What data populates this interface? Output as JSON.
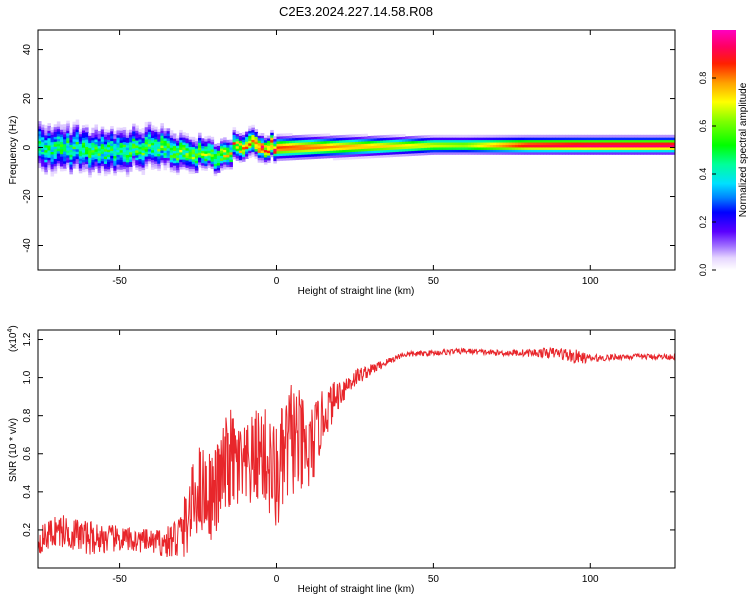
{
  "title": "C2E3.2024.227.14.58.R08",
  "chart_data": [
    {
      "type": "heatmap",
      "name": "spectrogram",
      "xlabel": "Height of straight line (km)",
      "ylabel": "Frequency (Hz)",
      "xlim": [
        -76,
        127
      ],
      "ylim": [
        -50,
        48
      ],
      "xticks": [
        -50,
        0,
        50,
        100
      ],
      "yticks": [
        -40,
        -20,
        0,
        20,
        40
      ],
      "colorbar": {
        "label": "Normalized spectral amplitude",
        "range": [
          0,
          1
        ],
        "ticks": [
          0.0,
          0.2,
          0.4,
          0.6,
          0.8
        ]
      },
      "band": {
        "center_freq_hz": [
          [
            -76,
            1
          ],
          [
            -60,
            -1
          ],
          [
            -40,
            0
          ],
          [
            -20,
            -3
          ],
          [
            -10,
            1
          ],
          [
            0,
            0
          ],
          [
            50,
            1
          ],
          [
            127,
            1
          ]
        ],
        "half_width_hz": [
          [
            -76,
            8
          ],
          [
            -40,
            7
          ],
          [
            -20,
            5
          ],
          [
            0,
            4
          ],
          [
            50,
            3
          ],
          [
            127,
            3
          ]
        ],
        "peak_amplitude": [
          [
            -76,
            0.45
          ],
          [
            -40,
            0.5
          ],
          [
            -20,
            0.6
          ],
          [
            0,
            0.85
          ],
          [
            30,
            0.75
          ],
          [
            60,
            0.65
          ],
          [
            80,
            0.9
          ],
          [
            100,
            0.95
          ],
          [
            127,
            0.95
          ]
        ]
      }
    },
    {
      "type": "line",
      "name": "snr",
      "xlabel": "Height of straight line (km)",
      "ylabel": "SNR (10 * v/v)",
      "scale_label": "(x10",
      "scale_exp": "4",
      "scale_close": ")",
      "xlim": [
        -76,
        127
      ],
      "ylim": [
        0,
        1.25
      ],
      "xticks": [
        -50,
        0,
        50,
        100
      ],
      "yticks": [
        0.2,
        0.4,
        0.6,
        0.8,
        1.0,
        1.2
      ],
      "series": [
        {
          "name": "SNR",
          "color": "#e8262b",
          "x": [
            -76,
            -70,
            -60,
            -50,
            -40,
            -35,
            -30,
            -25,
            -20,
            -15,
            -10,
            -5,
            0,
            5,
            10,
            15,
            20,
            25,
            30,
            35,
            40,
            50,
            60,
            70,
            80,
            90,
            95,
            100,
            110,
            120,
            127
          ],
          "y": [
            0.14,
            0.2,
            0.16,
            0.15,
            0.14,
            0.13,
            0.18,
            0.42,
            0.38,
            0.57,
            0.5,
            0.62,
            0.46,
            0.7,
            0.58,
            0.8,
            0.92,
            1.0,
            1.04,
            1.08,
            1.12,
            1.13,
            1.14,
            1.13,
            1.13,
            1.13,
            1.11,
            1.1,
            1.11,
            1.11,
            1.11
          ],
          "noise": [
            0.07,
            0.09,
            0.09,
            0.07,
            0.06,
            0.08,
            0.16,
            0.24,
            0.24,
            0.28,
            0.24,
            0.26,
            0.3,
            0.32,
            0.25,
            0.14,
            0.08,
            0.05,
            0.03,
            0.02,
            0.015,
            0.015,
            0.015,
            0.015,
            0.02,
            0.03,
            0.04,
            0.02,
            0.015,
            0.015,
            0.015
          ]
        }
      ]
    }
  ]
}
